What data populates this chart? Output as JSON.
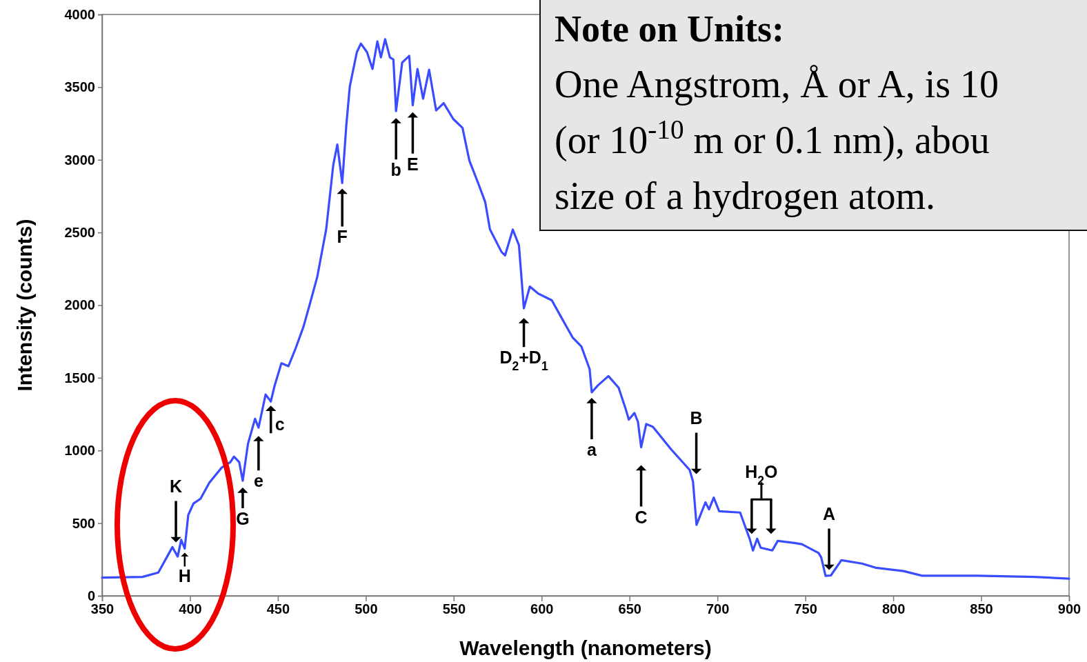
{
  "chart_data": {
    "type": "line",
    "xlabel": "Wavelength (nanometers)",
    "ylabel": "Intensity (counts)",
    "xlim": [
      350,
      900
    ],
    "xticks": [
      350,
      400,
      450,
      500,
      550,
      600,
      650,
      700,
      750,
      800,
      850,
      900
    ],
    "ylim": [
      0,
      4000
    ],
    "yticks": [
      0,
      500,
      1000,
      1500,
      2000,
      2500,
      3000,
      3500,
      4000
    ],
    "grid": false,
    "marker": "none",
    "line_style": "solid",
    "series": [
      {
        "color": "#3a4cff",
        "x": [
          350,
          373,
          382,
          390,
          393,
          395,
          397,
          399,
          402,
          406,
          411,
          418,
          423,
          425,
          428,
          430,
          433,
          437,
          439,
          443,
          446,
          448,
          452,
          456,
          460,
          464.5,
          468,
          472.4,
          477.5,
          481.5,
          483.8,
          486.6,
          488.9,
          490.9,
          494.9,
          497.2,
          500.7,
          503.8,
          506.6,
          508.6,
          511,
          513.7,
          515.7,
          517.2,
          520.7,
          524.7,
          526.7,
          529.4,
          532.6,
          536,
          540,
          544.3,
          549.8,
          555,
          558.9,
          563.9,
          567.9,
          570.6,
          577.2,
          579.2,
          583.6,
          587.1,
          589.9,
          593.3,
          598,
          605.8,
          611,
          617.6,
          622.6,
          627.3,
          628.5,
          632,
          638,
          643.8,
          647.7,
          649.6,
          652.8,
          654.8,
          656.6,
          659.5,
          663.3,
          673.7,
          684.2,
          686.1,
          688.1,
          693.2,
          695.2,
          697.9,
          701,
          712.9,
          718.3,
          720.2,
          722.6,
          724.6,
          731.2,
          734.3,
          743,
          748,
          757.5,
          759,
          761.5,
          764.5,
          770.5,
          782.2,
          790,
          805.8,
          816.4,
          847.8,
          880.3,
          900
        ],
        "values": [
          125,
          130,
          160,
          335,
          270,
          385,
          325,
          555,
          635,
          668,
          778,
          882,
          920,
          958,
          920,
          792,
          1047,
          1218,
          1157,
          1385,
          1337,
          1440,
          1600,
          1580,
          1700,
          1850,
          2000,
          2195,
          2525,
          2965,
          3105,
          2840,
          3235,
          3505,
          3740,
          3800,
          3740,
          3625,
          3815,
          3705,
          3830,
          3705,
          3690,
          3335,
          3670,
          3715,
          3375,
          3625,
          3420,
          3620,
          3340,
          3390,
          3280,
          3220,
          2995,
          2840,
          2710,
          2522,
          2366,
          2342,
          2520,
          2412,
          1978,
          2128,
          2080,
          2033,
          1920,
          1778,
          1716,
          1560,
          1400,
          1448,
          1512,
          1432,
          1290,
          1212,
          1258,
          1197,
          1022,
          1182,
          1163,
          1007,
          866,
          786,
          488,
          643,
          595,
          676,
          582,
          573,
          393,
          312,
          393,
          331,
          312,
          378,
          365,
          355,
          295,
          265,
          137,
          140,
          245,
          222,
          193,
          170,
          138,
          138,
          130,
          118
        ]
      }
    ],
    "annotations": [
      {
        "text": "H",
        "x": 397,
        "y": 325
      },
      {
        "text": "G",
        "x": 430,
        "y": 792
      },
      {
        "text": "e",
        "x": 439,
        "y": 1157
      },
      {
        "text": "c",
        "x": 446,
        "y": 1337
      },
      {
        "text": "F",
        "x": 486.6,
        "y": 2840
      },
      {
        "text": "b",
        "x": 517.2,
        "y": 3335
      },
      {
        "text": "E",
        "x": 526.7,
        "y": 3375
      },
      {
        "text": "D$_{2}$+D$_{1}$",
        "x": 589.9,
        "y": 1978
      },
      {
        "text": "a",
        "x": 628.5,
        "y": 1400
      },
      "K",
      "C",
      "B",
      "H$_{2}$O",
      "A",
      "Note on Units:",
      "One Angstrom, Å or A, is 10",
      "(or 10$^{-10}$ m or 0.1 nm), abou",
      "size of a hydrogen atom."
    ]
  }
}
